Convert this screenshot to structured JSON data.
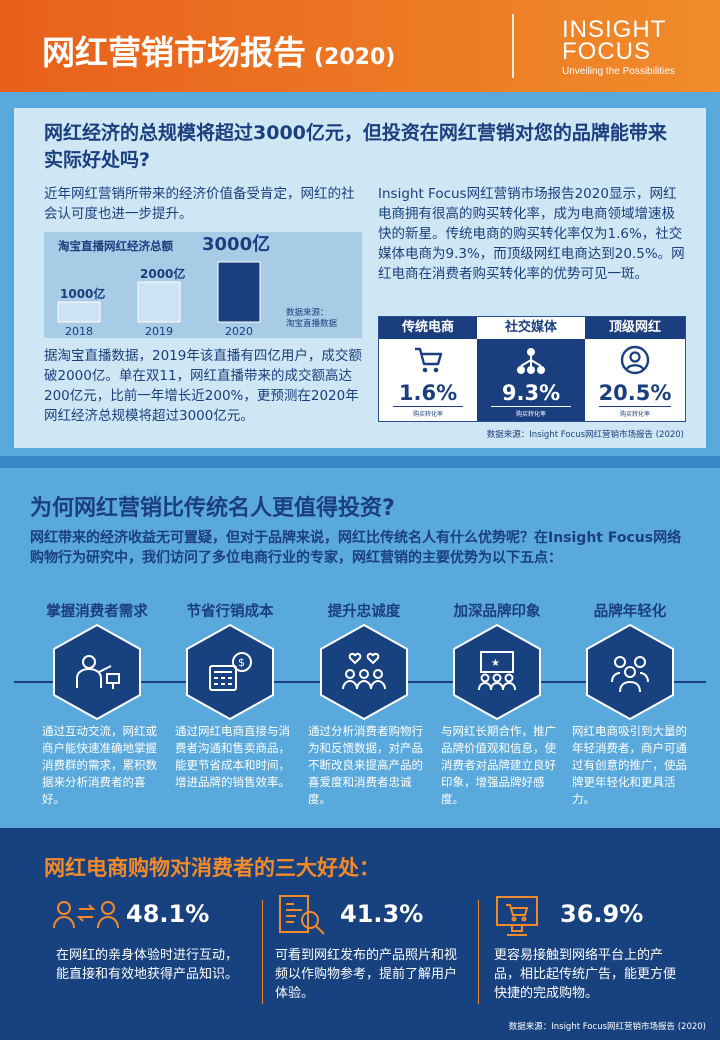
{
  "header": {
    "title": "网红营销市场报告",
    "year": "(2020)",
    "logo_line1": "INSIGHT",
    "logo_line2": "FOCUS",
    "logo_tagline": "Unveiling the Possibilities",
    "colors": {
      "orange": "#e8601c",
      "navy": "#1b3f7e",
      "light_blue": "#5aa9dc"
    }
  },
  "section1": {
    "question": "网红经济的总规模将超过3000亿元，但投资在网红营销对您的品牌能带来实际好处吗?",
    "para1": "近年网红营销所带来的经济价值备受肯定，网红的社会认可度也进一步提升。",
    "para2": "据淘宝直播数据，2019年该直播有四亿用户，成交额破2000亿。单在双11，网红直播带来的成交额高达200亿元，比前一年增长近200%，更预测在2020年网红经济总规模将超过3000亿元。",
    "para3": "Insight Focus网红营销市场报告2020显示，网红电商拥有很高的购买转化率，成为电商领域增速极快的新星。传统电商的购买转化率仅为1.6%，社交媒体电商为9.3%，而顶级网红电商达到20.5%。网红电商在消费者购买转化率的优势可见一斑。",
    "conversion": {
      "columns": [
        {
          "label": "传统电商",
          "value": "1.6%",
          "sub": "购买转化率",
          "icon": "shopping-cart-icon"
        },
        {
          "label": "社交媒体",
          "value": "9.3%",
          "sub": "购买转化率",
          "icon": "social-network-icon"
        },
        {
          "label": "顶级网红",
          "value": "20.5%",
          "sub": "购买转化率",
          "icon": "user-circle-icon"
        }
      ]
    },
    "source": "数据来源：Insight Focus网红营销市场报告 (2020)"
  },
  "chart_data": {
    "type": "bar",
    "title": "淘宝直播网红经济总额",
    "categories": [
      "2018",
      "2019",
      "2020"
    ],
    "values": [
      1000,
      2000,
      3000
    ],
    "value_labels": [
      "1000亿",
      "2000亿",
      "3000亿"
    ],
    "unit": "亿",
    "source_line1": "数据来源：",
    "source_line2": "淘宝直播数据",
    "colors": [
      "#cde3f4",
      "#cde3f4",
      "#1b3f7e"
    ]
  },
  "section2": {
    "title": "为何网红营销比传统名人更值得投资?",
    "intro": "网红带来的经济收益无可置疑，但对于品牌来说，网红比传统名人有什么优势呢？在Insight Focus网络购物行为研究中，我们访问了多位电商行业的专家，网红营销的主要优势为以下五点：",
    "advantages": [
      {
        "title": "掌握消费者需求",
        "text": "通过互动交流，网红或商户能快速准确地掌握消费群的需求，累积数据来分析消费者的喜好。",
        "icon": "presenter-icon"
      },
      {
        "title": "节省行销成本",
        "text": "通过网红电商直接与消费者沟通和售卖商品，能更节省成本和时间，增进品牌的销售效率。",
        "icon": "calculator-money-icon"
      },
      {
        "title": "提升忠诚度",
        "text": "通过分析消费者购物行为和反馈数据，对产品不断改良来提高产品的喜爱度和消费者忠诚度。",
        "icon": "group-hearts-icon"
      },
      {
        "title": "加深品牌印象",
        "text": "与网红长期合作，推广品牌价值观和信息，使消费者对品牌建立良好印象，增强品牌好感度。",
        "icon": "audience-board-icon"
      },
      {
        "title": "品牌年轻化",
        "text": "网红电商吸引到大量的年轻消费者，商户可通过有创意的推广，使品牌更年轻化和更具活力。",
        "icon": "young-people-icon"
      }
    ]
  },
  "section3": {
    "title": "网红电商购物对消费者的三大好处：",
    "benefits": [
      {
        "value": "48.1%",
        "text": "在网红的亲身体验时进行互动，能直接和有效地获得产品知识。",
        "icon": "exchange-people-icon"
      },
      {
        "value": "41.3%",
        "text": "可看到网红发布的产品照片和视频以作购物参考，提前了解用户体验。",
        "icon": "document-search-icon"
      },
      {
        "value": "36.9%",
        "text": "更容易接触到网络平台上的产品，相比起传统广告，能更方便快捷的完成购物。",
        "icon": "monitor-cart-icon"
      }
    ],
    "source": "数据来源：Insight Focus网红营销市场报告 (2020)"
  }
}
